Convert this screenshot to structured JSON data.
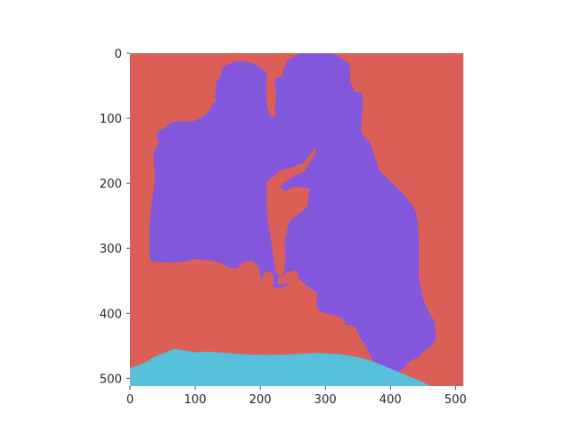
{
  "chart_data": {
    "type": "heatmap",
    "subtype": "segmentation-mask",
    "title": "",
    "xlabel": "",
    "ylabel": "",
    "xlim": [
      0,
      512
    ],
    "ylim": [
      512,
      0
    ],
    "y_inverted": true,
    "grid": false,
    "legend": "none",
    "x_ticks": [
      0,
      100,
      200,
      300,
      400,
      500
    ],
    "y_ticks": [
      0,
      100,
      200,
      300,
      400,
      500
    ],
    "x_tick_labels": [
      "0",
      "100",
      "200",
      "300",
      "400",
      "500"
    ],
    "y_tick_labels": [
      "0",
      "100",
      "200",
      "300",
      "400",
      "500"
    ],
    "classes": [
      {
        "id": "background",
        "color": "#db5f57"
      },
      {
        "id": "people",
        "color": "#8357db"
      },
      {
        "id": "table",
        "color": "#57c0db"
      }
    ],
    "regions": [
      {
        "class": "people",
        "points": [
          [
            238,
            286
          ],
          [
            245,
            258
          ],
          [
            262,
            245
          ],
          [
            272,
            236
          ],
          [
            276,
            208
          ],
          [
            252,
            205
          ],
          [
            238,
            212
          ],
          [
            230,
            205
          ],
          [
            252,
            188
          ],
          [
            260,
            185
          ],
          [
            268,
            182
          ],
          [
            276,
            168
          ],
          [
            282,
            160
          ],
          [
            286,
            151
          ],
          [
            282,
            140
          ],
          [
            276,
            132
          ],
          [
            264,
            120
          ],
          [
            250,
            118
          ],
          [
            242,
            118
          ],
          [
            237,
            117
          ],
          [
            237,
            100
          ],
          [
            230,
            100
          ],
          [
            227,
            95
          ],
          [
            227,
            77
          ],
          [
            238,
            67
          ],
          [
            248,
            60
          ],
          [
            255,
            50
          ],
          [
            262,
            46
          ],
          [
            268,
            45
          ],
          [
            275,
            44
          ],
          [
            290,
            42
          ],
          [
            306,
            42
          ],
          [
            320,
            42
          ],
          [
            326,
            50
          ],
          [
            344,
            60
          ],
          [
            354,
            60
          ],
          [
            358,
            64
          ],
          [
            357,
            88
          ],
          [
            356,
            100
          ],
          [
            355,
            117
          ],
          [
            356,
            124
          ],
          [
            369,
            138
          ],
          [
            383,
            180
          ],
          [
            420,
            216
          ],
          [
            434,
            234
          ],
          [
            438,
            243
          ],
          [
            442,
            258
          ],
          [
            444,
            287
          ],
          [
            444,
            347
          ],
          [
            450,
            378
          ],
          [
            462,
            404
          ],
          [
            468,
            412
          ],
          [
            470,
            441
          ],
          [
            460,
            453
          ],
          [
            450,
            460
          ],
          [
            443,
            468
          ],
          [
            431,
            473
          ],
          [
            420,
            485
          ],
          [
            404,
            496
          ],
          [
            384,
            497
          ],
          [
            375,
            476
          ],
          [
            369,
            465
          ],
          [
            363,
            451
          ],
          [
            353,
            437
          ],
          [
            346,
            421
          ],
          [
            338,
            418
          ],
          [
            329,
            418
          ],
          [
            331,
            413
          ],
          [
            325,
            407
          ],
          [
            318,
            404
          ],
          [
            310,
            402
          ],
          [
            300,
            400
          ],
          [
            292,
            397
          ],
          [
            287,
            390
          ],
          [
            287,
            368
          ],
          [
            276,
            361
          ],
          [
            266,
            353
          ],
          [
            258,
            345
          ],
          [
            242,
            347
          ],
          [
            233,
            352
          ],
          [
            226,
            353
          ],
          [
            216,
            352
          ],
          [
            204,
            347
          ],
          [
            196,
            339
          ],
          [
            194,
            327
          ],
          [
            181,
            324
          ],
          [
            170,
            331
          ],
          [
            160,
            330
          ],
          [
            154,
            331
          ],
          [
            138,
            322
          ],
          [
            125,
            319
          ],
          [
            113,
            318
          ],
          [
            102,
            316
          ],
          [
            86,
            320
          ],
          [
            65,
            322
          ],
          [
            42,
            321
          ],
          [
            32,
            320
          ],
          [
            30,
            312
          ],
          [
            30,
            280
          ],
          [
            30,
            260
          ],
          [
            34,
            225
          ],
          [
            37,
            205
          ],
          [
            38,
            185
          ],
          [
            37,
            175
          ],
          [
            36,
            153
          ],
          [
            40,
            145
          ],
          [
            44,
            137
          ],
          [
            44,
            133
          ],
          [
            41,
            129
          ],
          [
            42,
            122
          ],
          [
            44,
            120
          ],
          [
            50,
            116
          ],
          [
            55,
            114
          ],
          [
            58,
            111
          ],
          [
            60,
            108
          ],
          [
            65,
            106
          ],
          [
            70,
            105
          ],
          [
            72,
            106
          ],
          [
            78,
            103
          ],
          [
            84,
            105
          ],
          [
            88,
            105
          ],
          [
            91,
            104
          ],
          [
            96,
            105
          ],
          [
            100,
            103
          ],
          [
            108,
            100
          ],
          [
            116,
            95
          ],
          [
            120,
            90
          ],
          [
            124,
            84
          ],
          [
            127,
            77
          ],
          [
            130,
            76
          ],
          [
            133,
            74
          ],
          [
            130,
            68
          ],
          [
            132,
            56
          ],
          [
            132,
            45
          ],
          [
            135,
            41
          ],
          [
            140,
            35
          ],
          [
            140,
            23
          ],
          [
            149,
            18
          ],
          [
            160,
            13
          ],
          [
            175,
            12
          ],
          [
            189,
            16
          ],
          [
            200,
            22
          ],
          [
            210,
            30
          ],
          [
            209,
            60
          ],
          [
            210,
            77
          ],
          [
            213,
            92
          ],
          [
            219,
            99
          ],
          [
            224,
            95
          ],
          [
            222,
            82
          ],
          [
            224,
            69
          ],
          [
            224,
            54
          ],
          [
            222,
            47
          ],
          [
            224,
            37
          ],
          [
            234,
            36
          ],
          [
            235,
            28
          ],
          [
            240,
            14
          ],
          [
            250,
            5
          ],
          [
            262,
            0
          ],
          [
            273,
            0
          ],
          [
            292,
            0
          ],
          [
            311,
            0
          ],
          [
            319,
            4
          ],
          [
            334,
            14
          ],
          [
            338,
            20
          ],
          [
            338,
            45
          ],
          [
            346,
            60
          ],
          [
            356,
            95
          ],
          [
            346,
            100
          ],
          [
            332,
            96
          ],
          [
            316,
            102
          ],
          [
            303,
            117
          ],
          [
            290,
            130
          ],
          [
            282,
            148
          ],
          [
            272,
            162
          ],
          [
            266,
            169
          ],
          [
            254,
            173
          ],
          [
            241,
            178
          ],
          [
            230,
            181
          ],
          [
            217,
            191
          ],
          [
            210,
            199
          ],
          [
            210,
            230
          ],
          [
            211,
            254
          ],
          [
            216,
            285
          ],
          [
            221,
            318
          ],
          [
            224,
            337
          ],
          [
            233,
            347
          ],
          [
            247,
            348
          ],
          [
            245,
            355
          ],
          [
            238,
            358
          ],
          [
            232,
            361
          ],
          [
            225,
            362
          ],
          [
            220,
            360
          ],
          [
            220,
            355
          ],
          [
            223,
            353
          ],
          [
            227,
            349
          ],
          [
            236,
            338
          ],
          [
            238,
            328
          ],
          [
            239,
            320
          ],
          [
            238,
            308
          ]
        ]
      },
      {
        "class": "table",
        "points": [
          [
            0,
            512
          ],
          [
            0,
            485
          ],
          [
            22,
            476
          ],
          [
            36,
            468
          ],
          [
            54,
            460
          ],
          [
            70,
            455
          ],
          [
            82,
            457
          ],
          [
            100,
            460
          ],
          [
            120,
            459
          ],
          [
            150,
            461
          ],
          [
            175,
            463
          ],
          [
            200,
            464
          ],
          [
            225,
            464
          ],
          [
            250,
            463
          ],
          [
            270,
            462
          ],
          [
            290,
            461
          ],
          [
            310,
            462
          ],
          [
            330,
            464
          ],
          [
            348,
            467
          ],
          [
            368,
            472
          ],
          [
            386,
            479
          ],
          [
            405,
            487
          ],
          [
            424,
            495
          ],
          [
            448,
            505
          ],
          [
            462,
            512
          ]
        ]
      }
    ],
    "holes": [
      {
        "class": "background",
        "points": [
          [
            146,
            355
          ],
          [
            154,
            355
          ],
          [
            160,
            352
          ],
          [
            162,
            344
          ],
          [
            166,
            338
          ],
          [
            168,
            325
          ],
          [
            178,
            320
          ],
          [
            188,
            320
          ],
          [
            196,
            326
          ],
          [
            200,
            337
          ],
          [
            200,
            350
          ],
          [
            196,
            357
          ],
          [
            188,
            359
          ],
          [
            178,
            362
          ],
          [
            170,
            367
          ],
          [
            162,
            370
          ],
          [
            146,
            370
          ],
          [
            140,
            364
          ],
          [
            141,
            358
          ]
        ]
      },
      {
        "class": "background",
        "points": [
          [
            226,
            348
          ],
          [
            240,
            338
          ],
          [
            248,
            335
          ],
          [
            254,
            334
          ],
          [
            258,
            337
          ],
          [
            258,
            346
          ],
          [
            250,
            352
          ],
          [
            236,
            355
          ],
          [
            228,
            355
          ]
        ]
      },
      {
        "class": "background",
        "points": [
          [
            220,
            362
          ],
          [
            224,
            360
          ],
          [
            232,
            361
          ],
          [
            234,
            364
          ],
          [
            232,
            368
          ],
          [
            222,
            370
          ],
          [
            216,
            370
          ],
          [
            212,
            366
          ],
          [
            212,
            364
          ]
        ]
      },
      {
        "class": "background",
        "points": [
          [
            234,
            371
          ],
          [
            244,
            368
          ],
          [
            252,
            369
          ],
          [
            256,
            373
          ],
          [
            252,
            378
          ],
          [
            240,
            380
          ],
          [
            234,
            378
          ]
        ]
      },
      {
        "class": "background",
        "points": [
          [
            208,
            336
          ],
          [
            216,
            336
          ],
          [
            220,
            341
          ],
          [
            220,
            350
          ],
          [
            214,
            354
          ],
          [
            206,
            352
          ],
          [
            203,
            344
          ]
        ]
      },
      {
        "class": "background",
        "points": [
          [
            145,
            343
          ],
          [
            152,
            343
          ],
          [
            156,
            346
          ],
          [
            158,
            351
          ],
          [
            154,
            354
          ],
          [
            146,
            354
          ],
          [
            141,
            350
          ],
          [
            141,
            346
          ]
        ]
      },
      {
        "class": "background",
        "points": [
          [
            158,
            430
          ],
          [
            166,
            424
          ],
          [
            172,
            420
          ],
          [
            180,
            420
          ],
          [
            186,
            424
          ],
          [
            188,
            434
          ],
          [
            186,
            444
          ],
          [
            180,
            450
          ],
          [
            170,
            452
          ],
          [
            158,
            452
          ],
          [
            150,
            446
          ],
          [
            148,
            438
          ]
        ]
      },
      {
        "class": "background",
        "points": [
          [
            104,
            356
          ],
          [
            112,
            348
          ],
          [
            124,
            346
          ],
          [
            140,
            346
          ],
          [
            160,
            348
          ],
          [
            174,
            356
          ],
          [
            182,
            368
          ],
          [
            186,
            382
          ],
          [
            184,
            396
          ],
          [
            176,
            408
          ],
          [
            166,
            418
          ],
          [
            150,
            422
          ],
          [
            132,
            422
          ],
          [
            118,
            418
          ],
          [
            108,
            408
          ],
          [
            102,
            392
          ],
          [
            100,
            376
          ]
        ]
      }
    ]
  }
}
